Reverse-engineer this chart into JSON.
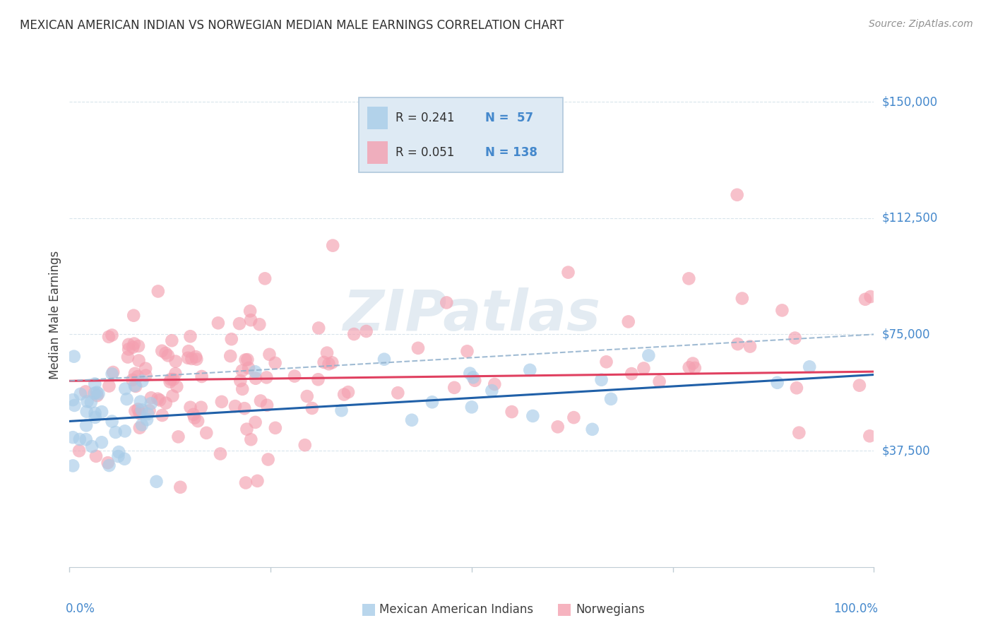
{
  "title": "MEXICAN AMERICAN INDIAN VS NORWEGIAN MEDIAN MALE EARNINGS CORRELATION CHART",
  "source": "Source: ZipAtlas.com",
  "ylabel": "Median Male Earnings",
  "watermark": "ZIPatlas",
  "blue_color": "#a8cce8",
  "pink_color": "#f4a0b0",
  "blue_line_color": "#2060a8",
  "pink_line_color": "#e04060",
  "dashed_line_color": "#90b0cc",
  "grid_color": "#d8e4ec",
  "title_color": "#303030",
  "axis_label_color": "#404040",
  "tick_label_color": "#4488cc",
  "legend_border_color": "#b0c8dc",
  "legend_bg_color": "#deeaf4",
  "ylim": [
    0,
    162500
  ],
  "xlim": [
    0.0,
    1.0
  ],
  "ytick_vals": [
    37500,
    75000,
    112500,
    150000
  ],
  "ytick_labels": [
    "$37,500",
    "$75,000",
    "$112,500",
    "$150,000"
  ],
  "R_blue": 0.241,
  "N_blue": 57,
  "R_pink": 0.051,
  "N_pink": 138,
  "blue_line_x0": 0.0,
  "blue_line_y0": 47000,
  "blue_line_x1": 1.0,
  "blue_line_y1": 62000,
  "pink_line_x0": 0.0,
  "pink_line_y0": 60000,
  "pink_line_x1": 1.0,
  "pink_line_y1": 63000,
  "dash_line_x0": 0.0,
  "dash_line_y0": 60000,
  "dash_line_x1": 1.0,
  "dash_line_y1": 75000
}
